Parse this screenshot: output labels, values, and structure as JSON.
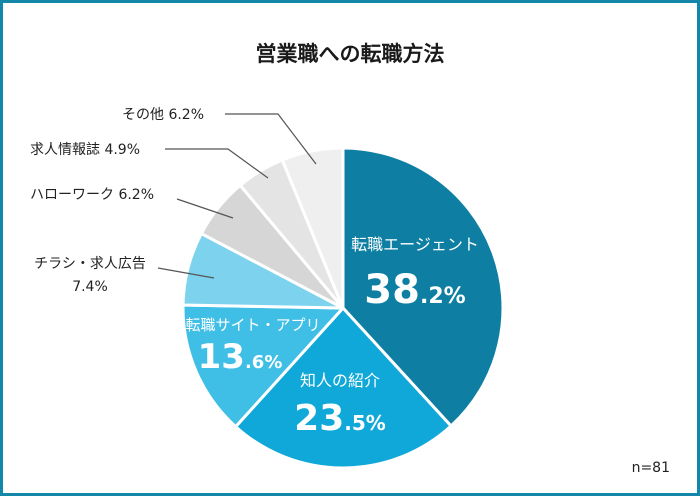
{
  "chart_data": {
    "type": "pie",
    "title": "営業職への転職方法",
    "sample_size": "n=81",
    "start_angle_deg": 0,
    "direction": "clockwise",
    "slices": [
      {
        "label": "転職エージェント",
        "value": 38.2,
        "value_int": "38",
        "value_dec": ".2%",
        "color": "#0e7fa3",
        "label_placement": "inside"
      },
      {
        "label": "知人の紹介",
        "value": 23.5,
        "value_int": "23",
        "value_dec": ".5%",
        "color": "#10a8d8",
        "label_placement": "inside"
      },
      {
        "label": "転職サイト・アプリ",
        "value": 13.6,
        "value_int": "13",
        "value_dec": ".6%",
        "color": "#40bfe6",
        "label_placement": "inside"
      },
      {
        "label": "チラシ・求人広告",
        "value": 7.4,
        "value_text": "7.4%",
        "color": "#7dd3ee",
        "label_placement": "outside"
      },
      {
        "label": "ハローワーク",
        "value": 6.2,
        "value_text": "6.2%",
        "color": "#d6d6d6",
        "label_placement": "outside"
      },
      {
        "label": "求人情報誌",
        "value": 4.9,
        "value_text": "4.9%",
        "color": "#e4e4e4",
        "label_placement": "outside"
      },
      {
        "label": "その他",
        "value": 6.2,
        "value_text": "6.2%",
        "color": "#efefef",
        "label_placement": "outside"
      }
    ]
  },
  "colors": {
    "frame_border": "#1387a7",
    "separator": "#ffffff",
    "leader_line": "#555555",
    "outside_text": "#222222",
    "inside_text": "#ffffff"
  }
}
